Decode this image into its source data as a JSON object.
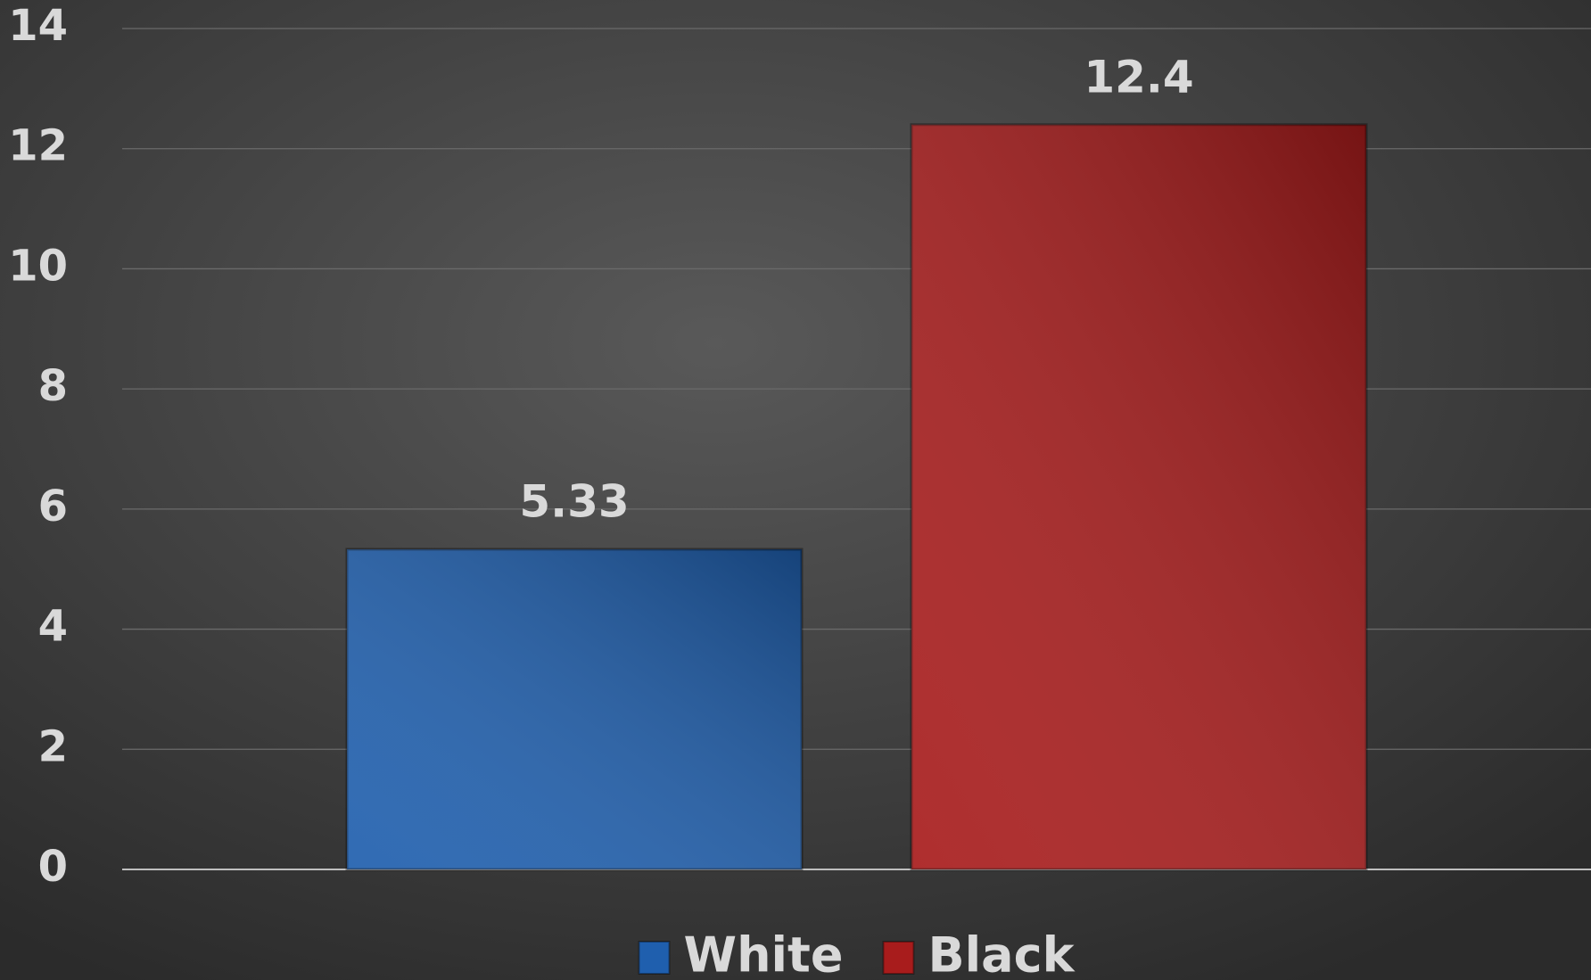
{
  "chart_data": {
    "type": "bar",
    "categories": [
      null
    ],
    "series": [
      {
        "name": "White",
        "color": "#1f5fae",
        "values": [
          5.33
        ]
      },
      {
        "name": "Black",
        "color": "#a81c1c",
        "values": [
          12.4
        ]
      }
    ],
    "ylim": [
      0,
      14
    ],
    "yticks": [
      0,
      2,
      4,
      6,
      8,
      10,
      12,
      14
    ],
    "grid": true,
    "legend": "bottom"
  }
}
